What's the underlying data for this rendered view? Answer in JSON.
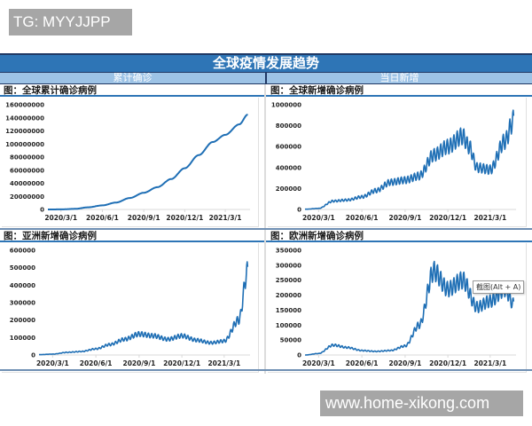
{
  "watermarks": {
    "top": "TG: MYYJJPP",
    "bottom": "www.home-xikong.com"
  },
  "header": {
    "title": "全球疫情发展趋势",
    "left_section": "累计确诊",
    "right_section": "当日新增"
  },
  "tooltip": "截图(Alt + A)",
  "colors": {
    "line": "#1f6fb5",
    "title_bar": "#2e75b6",
    "sub_bar": "#9dc3e6",
    "border_dark": "#1f3864"
  },
  "panels": [
    {
      "title": "图：全球累计确诊病例",
      "yticks": [
        "160000000",
        "140000000",
        "120000000",
        "100000000",
        "80000000",
        "60000000",
        "40000000",
        "20000000",
        "0"
      ],
      "xticks": [
        "2020/3/1",
        "2020/6/1",
        "2020/9/1",
        "2020/12/1",
        "2021/3/1"
      ]
    },
    {
      "title": "图：全球新增确诊病例",
      "yticks": [
        "1000000",
        "800000",
        "600000",
        "400000",
        "200000",
        "0"
      ],
      "xticks": [
        "2020/3/1",
        "2020/6/1",
        "2020/9/1",
        "2020/12/1",
        "2021/3/1"
      ]
    },
    {
      "title": "图：亚洲新增确诊病例",
      "yticks": [
        "600000",
        "500000",
        "400000",
        "300000",
        "200000",
        "100000",
        "0"
      ],
      "xticks": [
        "2020/3/1",
        "2020/6/1",
        "2020/9/1",
        "2020/12/1",
        "2021/3/1"
      ]
    },
    {
      "title": "图：欧洲新增确诊病例",
      "yticks": [
        "350000",
        "300000",
        "250000",
        "200000",
        "150000",
        "100000",
        "50000",
        "0"
      ],
      "xticks": [
        "2020/3/1",
        "2020/6/1",
        "2020/9/1",
        "2020/12/1",
        "2021/3/1"
      ]
    }
  ],
  "chart_data": [
    {
      "type": "line",
      "title": "图：全球累计确诊病例",
      "xlabel": "",
      "ylabel": "",
      "categories": [
        "2020/2/1",
        "2020/3/1",
        "2020/4/1",
        "2020/5/1",
        "2020/6/1",
        "2020/7/1",
        "2020/8/1",
        "2020/9/1",
        "2020/10/1",
        "2020/11/1",
        "2020/12/1",
        "2021/1/1",
        "2021/2/1",
        "2021/3/1",
        "2021/4/1",
        "2021/4/20"
      ],
      "values": [
        10000,
        90000,
        900000,
        3300000,
        6200000,
        10500000,
        17500000,
        25500000,
        34000000,
        46500000,
        63000000,
        83000000,
        103000000,
        114000000,
        130000000,
        145000000
      ],
      "ylim": [
        0,
        160000000
      ],
      "xticks": [
        "2020/3/1",
        "2020/6/1",
        "2020/9/1",
        "2020/12/1",
        "2021/3/1"
      ],
      "grid": false,
      "legend": "none"
    },
    {
      "type": "line",
      "title": "图：全球新增确诊病例",
      "xlabel": "",
      "ylabel": "",
      "categories": [
        "2020/2/1",
        "2020/3/1",
        "2020/4/1",
        "2020/5/1",
        "2020/6/1",
        "2020/7/1",
        "2020/8/1",
        "2020/9/1",
        "2020/10/1",
        "2020/11/1",
        "2020/12/1",
        "2021/1/1",
        "2021/1/15",
        "2021/2/1",
        "2021/3/1",
        "2021/4/1",
        "2021/4/20"
      ],
      "values": [
        2000,
        10000,
        80000,
        90000,
        120000,
        180000,
        260000,
        280000,
        320000,
        520000,
        600000,
        700000,
        600000,
        400000,
        380000,
        650000,
        850000
      ],
      "ylim": [
        0,
        1000000
      ],
      "xticks": [
        "2020/3/1",
        "2020/6/1",
        "2020/9/1",
        "2020/12/1",
        "2021/3/1"
      ],
      "grid": false,
      "legend": "none"
    },
    {
      "type": "line",
      "title": "图：亚洲新增确诊病例",
      "xlabel": "",
      "ylabel": "",
      "categories": [
        "2020/2/1",
        "2020/3/1",
        "2020/4/1",
        "2020/5/1",
        "2020/6/1",
        "2020/7/1",
        "2020/8/1",
        "2020/9/1",
        "2020/10/1",
        "2020/11/1",
        "2020/12/1",
        "2021/1/1",
        "2021/2/1",
        "2021/3/1",
        "2021/4/1",
        "2021/4/20"
      ],
      "values": [
        2000,
        5000,
        15000,
        20000,
        35000,
        60000,
        90000,
        120000,
        110000,
        90000,
        110000,
        85000,
        70000,
        80000,
        200000,
        480000
      ],
      "ylim": [
        0,
        600000
      ],
      "xticks": [
        "2020/3/1",
        "2020/6/1",
        "2020/9/1",
        "2020/12/1",
        "2021/3/1"
      ],
      "grid": false,
      "legend": "none"
    },
    {
      "type": "line",
      "title": "图：欧洲新增确诊病例",
      "xlabel": "",
      "ylabel": "",
      "categories": [
        "2020/2/1",
        "2020/3/1",
        "2020/4/1",
        "2020/5/1",
        "2020/6/1",
        "2020/7/1",
        "2020/8/1",
        "2020/9/1",
        "2020/10/1",
        "2020/11/1",
        "2020/12/1",
        "2021/1/1",
        "2021/2/1",
        "2021/3/1",
        "2021/4/1",
        "2021/4/20"
      ],
      "values": [
        0,
        5000,
        33000,
        25000,
        15000,
        12000,
        15000,
        30000,
        100000,
        280000,
        220000,
        250000,
        160000,
        180000,
        220000,
        170000
      ],
      "ylim": [
        0,
        350000
      ],
      "xticks": [
        "2020/3/1",
        "2020/6/1",
        "2020/9/1",
        "2020/12/1",
        "2021/3/1"
      ],
      "grid": false,
      "legend": "none"
    }
  ]
}
